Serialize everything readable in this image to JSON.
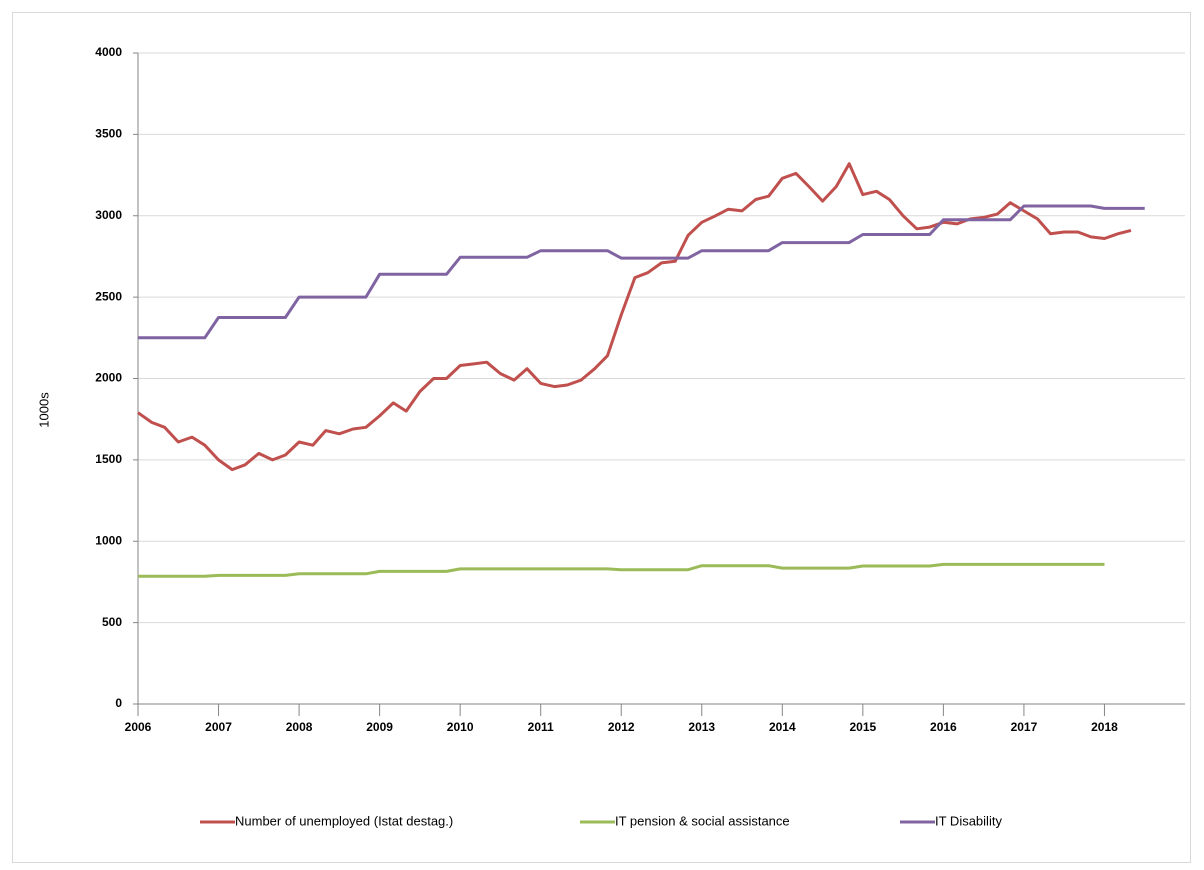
{
  "chart_data": {
    "type": "line",
    "ylabel": "1000s",
    "x": [
      2006,
      2006.17,
      2006.33,
      2006.5,
      2006.67,
      2006.83,
      2007,
      2007.17,
      2007.33,
      2007.5,
      2007.67,
      2007.83,
      2008,
      2008.17,
      2008.33,
      2008.5,
      2008.67,
      2008.83,
      2009,
      2009.17,
      2009.33,
      2009.5,
      2009.67,
      2009.83,
      2010,
      2010.17,
      2010.33,
      2010.5,
      2010.67,
      2010.83,
      2011,
      2011.17,
      2011.33,
      2011.5,
      2011.67,
      2011.83,
      2012,
      2012.17,
      2012.33,
      2012.5,
      2012.67,
      2012.83,
      2013,
      2013.17,
      2013.33,
      2013.5,
      2013.67,
      2013.83,
      2014,
      2014.17,
      2014.33,
      2014.5,
      2014.67,
      2014.83,
      2015,
      2015.17,
      2015.33,
      2015.5,
      2015.67,
      2015.83,
      2016,
      2016.17,
      2016.33,
      2016.5,
      2016.67,
      2016.83,
      2017,
      2017.17,
      2017.33,
      2017.5,
      2017.67,
      2017.83,
      2018,
      2018.17,
      2018.33,
      2018.5
    ],
    "series": [
      {
        "name": "Number of unemployed (Istat destag.)",
        "color": "#c0504d",
        "values": [
          1790,
          1730,
          1700,
          1610,
          1640,
          1590,
          1500,
          1440,
          1470,
          1540,
          1500,
          1530,
          1610,
          1590,
          1680,
          1660,
          1690,
          1700,
          1770,
          1850,
          1800,
          1920,
          2000,
          2000,
          2080,
          2090,
          2100,
          2030,
          1990,
          2060,
          1970,
          1950,
          1960,
          1990,
          2060,
          2140,
          2390,
          2620,
          2650,
          2710,
          2720,
          2880,
          2960,
          3000,
          3040,
          3030,
          3100,
          3120,
          3230,
          3260,
          3180,
          3090,
          3180,
          3320,
          3130,
          3150,
          3100,
          3000,
          2920,
          2930,
          2960,
          2950,
          2980,
          2990,
          3010,
          3080,
          3030,
          2980,
          2890,
          2900,
          2900,
          2870,
          2860,
          2890,
          2910,
          null
        ]
      },
      {
        "name": "IT pension & social assistance",
        "color": "#9bbb59",
        "values": [
          785,
          785,
          785,
          785,
          785,
          785,
          790,
          790,
          790,
          790,
          790,
          790,
          800,
          800,
          800,
          800,
          800,
          800,
          815,
          815,
          815,
          815,
          815,
          815,
          830,
          830,
          830,
          830,
          830,
          830,
          830,
          830,
          830,
          830,
          830,
          830,
          825,
          825,
          825,
          825,
          825,
          825,
          850,
          850,
          850,
          850,
          850,
          850,
          835,
          835,
          835,
          835,
          835,
          835,
          848,
          848,
          848,
          848,
          848,
          848,
          858,
          858,
          858,
          858,
          858,
          858,
          858,
          858,
          858,
          858,
          858,
          858,
          858,
          null,
          null,
          null
        ]
      },
      {
        "name": "IT Disability",
        "color": "#8064a2",
        "values": [
          2250,
          2250,
          2250,
          2250,
          2250,
          2250,
          2375,
          2375,
          2375,
          2375,
          2375,
          2375,
          2500,
          2500,
          2500,
          2500,
          2500,
          2500,
          2640,
          2640,
          2640,
          2640,
          2640,
          2640,
          2745,
          2745,
          2745,
          2745,
          2745,
          2745,
          2785,
          2785,
          2785,
          2785,
          2785,
          2785,
          2740,
          2740,
          2740,
          2740,
          2740,
          2740,
          2785,
          2785,
          2785,
          2785,
          2785,
          2785,
          2835,
          2835,
          2835,
          2835,
          2835,
          2835,
          2885,
          2885,
          2885,
          2885,
          2885,
          2885,
          2975,
          2975,
          2975,
          2975,
          2975,
          2975,
          3060,
          3060,
          3060,
          3060,
          3060,
          3060,
          3045,
          3045,
          3045,
          3045
        ]
      }
    ],
    "xlim": [
      2006,
      2019
    ],
    "xticks": [
      2006,
      2007,
      2008,
      2009,
      2010,
      2011,
      2012,
      2013,
      2014,
      2015,
      2016,
      2017,
      2018
    ],
    "ylim": [
      0,
      4000
    ],
    "yticks": [
      0,
      500,
      1000,
      1500,
      2000,
      2500,
      3000,
      3500,
      4000
    ],
    "grid": true,
    "legend": "bottom"
  }
}
